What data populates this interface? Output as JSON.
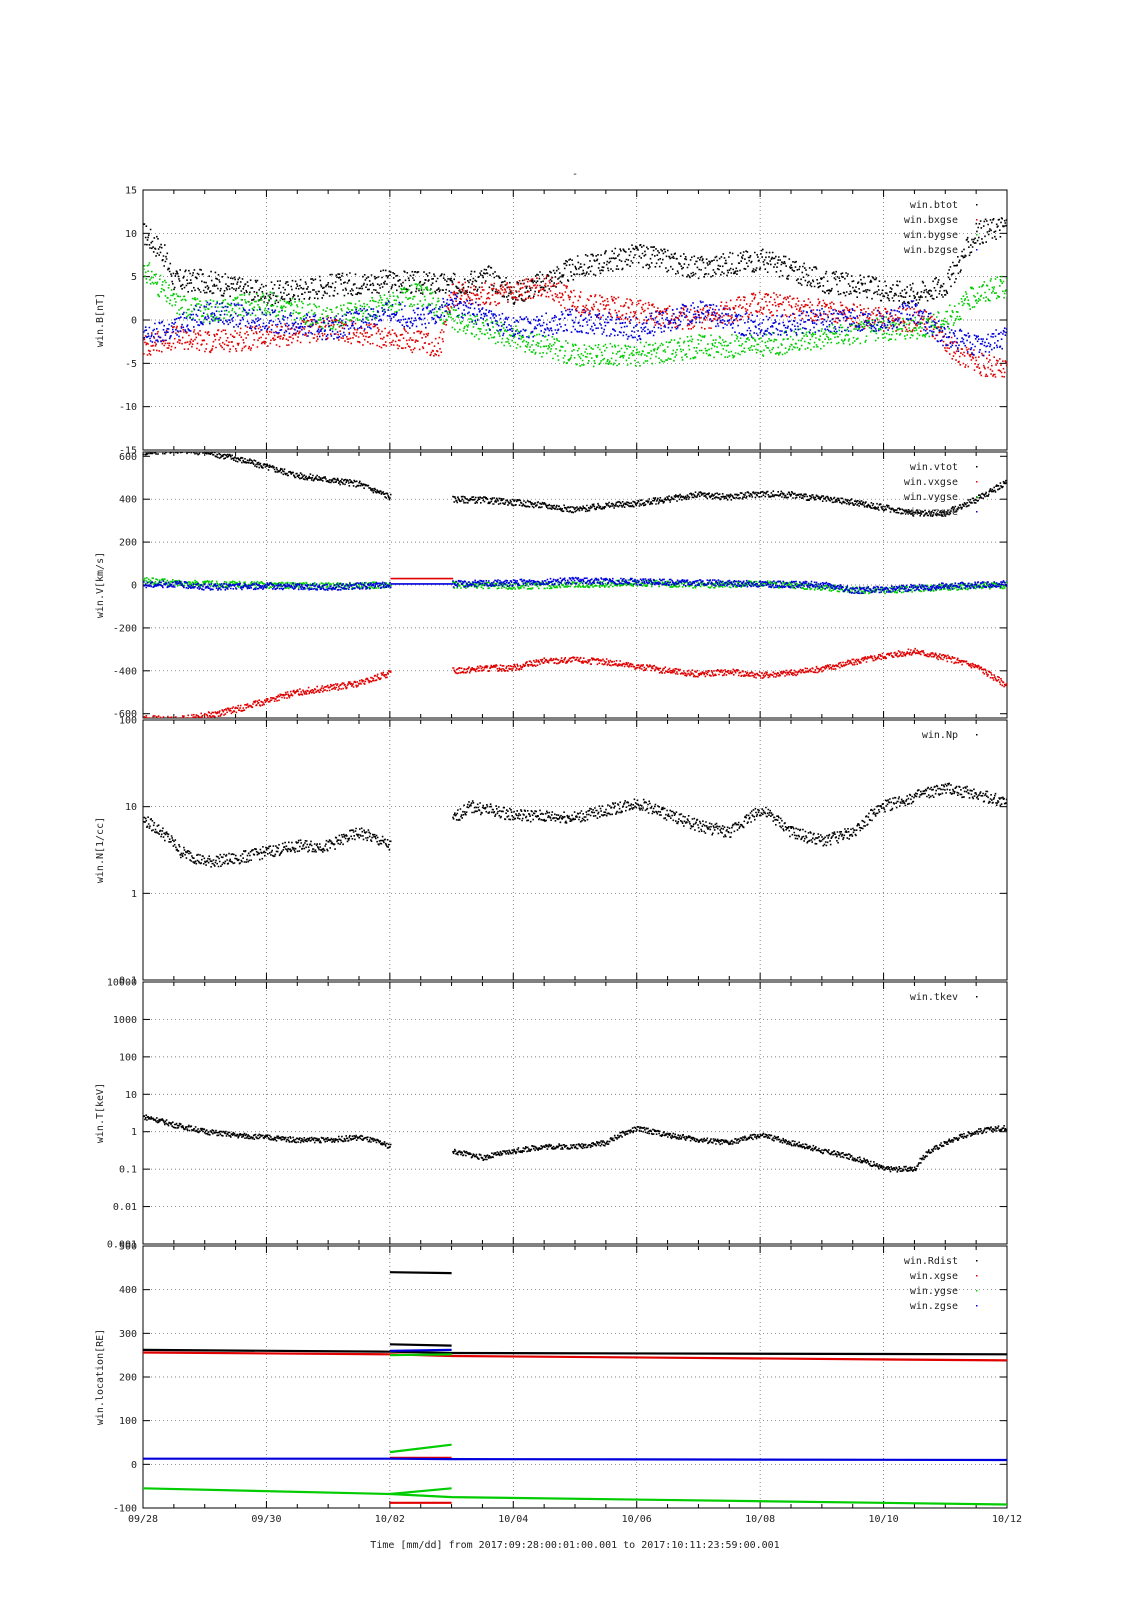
{
  "title": "-",
  "time_axis": {
    "start_day": "09/28",
    "tick_labels": [
      "09/28",
      "09/30",
      "10/02",
      "10/04",
      "10/06",
      "10/08",
      "10/10",
      "10/12"
    ],
    "tick_days": [
      0,
      2,
      4,
      6,
      8,
      10,
      12,
      14
    ],
    "xlim": [
      0,
      14
    ],
    "xlabel": "Time [mm/dd]  from 2017:09:28:00:01:00.001  to  2017:10:11:23:59:00.001"
  },
  "colors": {
    "black": "#000000",
    "red": "#e00000",
    "green": "#00cc00",
    "blue": "#0000dd"
  },
  "chart_data": [
    {
      "type": "scatter",
      "ylabel": "win.B[nT]",
      "scale": "linear",
      "ylim": [
        -15,
        15
      ],
      "yticks": [
        -15,
        -10,
        -5,
        0,
        5,
        10,
        15
      ],
      "ytick_labels": [
        "-15",
        "-10",
        "-5",
        "0",
        "5",
        "10",
        "15"
      ],
      "grid": true,
      "legend_position": "top-right",
      "series": [
        {
          "name": "win.btot",
          "color": "#000000",
          "x": [
            0,
            0.3,
            0.5,
            1,
            2,
            3,
            4,
            5,
            5.6,
            6,
            7,
            8,
            9,
            10,
            11,
            12,
            12.5,
            13,
            13.5,
            14
          ],
          "y": [
            10,
            8,
            4.5,
            4.5,
            3,
            4,
            4.5,
            4,
            5,
            3,
            6,
            7.5,
            6,
            7,
            4.5,
            3.5,
            3,
            4,
            10,
            11
          ]
        },
        {
          "name": "win.bxgse",
          "color": "#e00000",
          "x": [
            0,
            0.5,
            1,
            2,
            3,
            4,
            4.8,
            5,
            6,
            6.5,
            7,
            8,
            9,
            10,
            11,
            12,
            12.7,
            13,
            13.5,
            14
          ],
          "y": [
            -3,
            -2,
            -2.5,
            -2,
            -1,
            -2,
            -3,
            3,
            3,
            4,
            2,
            1,
            0,
            2,
            1,
            0,
            0,
            -3,
            -5,
            -6
          ]
        },
        {
          "name": "win.bygse",
          "color": "#00cc00",
          "x": [
            0,
            0.5,
            1,
            2,
            3,
            4,
            4.5,
            5,
            6,
            7,
            8,
            9,
            10,
            11,
            12,
            12.5,
            13,
            13.5,
            14
          ],
          "y": [
            6,
            2,
            1,
            2,
            0,
            2,
            3,
            0,
            -2,
            -4,
            -4,
            -3,
            -3,
            -2,
            -1,
            -1,
            0,
            3,
            4
          ]
        },
        {
          "name": "win.bzgse",
          "color": "#0000dd",
          "x": [
            0,
            0.5,
            1,
            2,
            3,
            4,
            4.5,
            5,
            6,
            7,
            8,
            9,
            10,
            11,
            12,
            12.5,
            13,
            13.5,
            14
          ],
          "y": [
            -2,
            -1,
            1,
            0,
            -1,
            1,
            0,
            2,
            -1,
            0,
            -1,
            1,
            -1,
            0,
            0,
            1,
            -2,
            -3,
            -2
          ]
        }
      ]
    },
    {
      "type": "scatter",
      "ylabel": "win.V[km/s]",
      "scale": "linear",
      "ylim": [
        -620,
        620
      ],
      "yticks": [
        -600,
        -400,
        -200,
        0,
        200,
        400,
        600
      ],
      "ytick_labels": [
        "-600",
        "-400",
        "-200",
        "0",
        "200",
        "400",
        "600"
      ],
      "grid": true,
      "legend_position": "top-right",
      "series": [
        {
          "name": "win.vtot",
          "color": "#000000",
          "x": [
            0,
            0.5,
            1,
            1.5,
            2,
            2.5,
            3,
            3.5,
            4,
            5,
            5.5,
            6,
            6.5,
            7,
            7.5,
            8,
            8.5,
            9,
            9.5,
            10,
            10.5,
            11,
            11.5,
            12,
            12.5,
            13,
            13.5,
            14
          ],
          "y": [
            620,
            630,
            620,
            590,
            550,
            510,
            490,
            470,
            410,
            400,
            395,
            385,
            370,
            350,
            370,
            380,
            400,
            420,
            410,
            425,
            420,
            400,
            385,
            360,
            335,
            335,
            400,
            480
          ]
        },
        {
          "name": "win.vxgse",
          "color": "#e00000",
          "x": [
            0,
            0.5,
            1,
            1.5,
            2,
            2.5,
            3,
            3.5,
            4,
            5,
            5.5,
            6,
            6.5,
            7,
            7.5,
            8,
            8.5,
            9,
            9.5,
            10,
            10.5,
            11,
            11.5,
            12,
            12.5,
            13,
            13.5,
            14
          ],
          "y": [
            -620,
            -630,
            -610,
            -580,
            -540,
            -500,
            -480,
            -460,
            -410,
            -400,
            -390,
            -385,
            -355,
            -350,
            -360,
            -380,
            -400,
            -415,
            -405,
            -420,
            -410,
            -390,
            -360,
            -330,
            -310,
            -340,
            -380,
            -470
          ]
        },
        {
          "name": "win.vygse",
          "color": "#00cc00",
          "x": [
            0,
            0.5,
            1,
            2,
            3,
            4,
            5,
            6,
            7,
            8,
            9,
            10,
            11,
            11.5,
            12,
            13,
            14
          ],
          "y": [
            20,
            10,
            5,
            0,
            -5,
            0,
            0,
            -5,
            0,
            10,
            0,
            5,
            -10,
            -25,
            -25,
            -10,
            0
          ]
        },
        {
          "name": "win.vzgse",
          "color": "#0000dd",
          "x": [
            0,
            0.5,
            1,
            2,
            3,
            4,
            5,
            6,
            7,
            8,
            9,
            10,
            11,
            11.5,
            12,
            13,
            14
          ],
          "y": [
            0,
            5,
            -10,
            -5,
            -10,
            0,
            5,
            10,
            20,
            15,
            10,
            5,
            0,
            -25,
            -20,
            -5,
            5
          ]
        }
      ]
    },
    {
      "type": "scatter",
      "ylabel": "win.N[1/cc]",
      "scale": "log",
      "ylim": [
        0.1,
        100
      ],
      "yticks": [
        0.1,
        1,
        10,
        100
      ],
      "ytick_labels": [
        "0.1",
        "1",
        "10",
        "100"
      ],
      "grid": true,
      "legend_position": "top-right",
      "series": [
        {
          "name": "win.Np",
          "color": "#000000",
          "x": [
            0,
            0.3,
            0.6,
            1,
            1.5,
            2,
            2.5,
            3,
            3.5,
            4,
            5,
            5.3,
            6,
            7,
            7.5,
            8,
            8.5,
            9,
            9.5,
            10,
            10.5,
            11,
            11.5,
            12,
            12.5,
            13,
            13.5,
            14
          ],
          "y": [
            7,
            5,
            3,
            2.3,
            2.5,
            3,
            3.5,
            3.5,
            5,
            3.5,
            7,
            10,
            8,
            7.5,
            9,
            11,
            8,
            6,
            5,
            9,
            5,
            4,
            5,
            10,
            13,
            16,
            14,
            11
          ]
        }
      ]
    },
    {
      "type": "scatter",
      "ylabel": "win.T[keV]",
      "scale": "log",
      "ylim": [
        0.001,
        10000
      ],
      "yticks": [
        0.001,
        0.01,
        0.1,
        1,
        10,
        100,
        1000,
        10000
      ],
      "ytick_labels": [
        "0.001",
        "0.01",
        "0.1",
        "1",
        "10",
        "100",
        "1000",
        "10000"
      ],
      "grid": true,
      "legend_position": "top-right",
      "series": [
        {
          "name": "win.tkev",
          "color": "#000000",
          "x": [
            0,
            0.5,
            1,
            1.5,
            2,
            2.5,
            3,
            3.5,
            4,
            5,
            5.5,
            6,
            6.5,
            7,
            7.5,
            8,
            8.5,
            9,
            9.5,
            10,
            10.5,
            11,
            11.5,
            12,
            12.5,
            13,
            13.5,
            14
          ],
          "y": [
            2.5,
            1.5,
            1,
            0.8,
            0.7,
            0.6,
            0.6,
            0.7,
            0.4,
            0.3,
            0.2,
            0.3,
            0.4,
            0.4,
            0.5,
            1.2,
            0.8,
            0.6,
            0.5,
            0.8,
            0.5,
            0.3,
            0.2,
            0.1,
            0.1,
            0.5,
            1,
            1.3
          ]
        }
      ]
    },
    {
      "type": "line",
      "ylabel": "win.location[RE]",
      "scale": "linear",
      "ylim": [
        -100,
        500
      ],
      "yticks": [
        -100,
        0,
        100,
        200,
        300,
        400,
        500
      ],
      "ytick_labels": [
        "-100",
        "0",
        "100",
        "200",
        "300",
        "400",
        "500"
      ],
      "grid": true,
      "legend_position": "top-right",
      "series": [
        {
          "name": "win.Rdist",
          "color": "#000000",
          "segments": [
            {
              "x": [
                0,
                4,
                5,
                14
              ],
              "y": [
                262,
                258,
                255,
                252
              ]
            },
            {
              "x": [
                4,
                5
              ],
              "y": [
                440,
                438
              ]
            },
            {
              "x": [
                4,
                5
              ],
              "y": [
                275,
                272
              ]
            }
          ]
        },
        {
          "name": "win.xgse",
          "color": "#e00000",
          "segments": [
            {
              "x": [
                0,
                4,
                5,
                14
              ],
              "y": [
                256,
                252,
                248,
                238
              ]
            },
            {
              "x": [
                4,
                5
              ],
              "y": [
                15,
                15
              ]
            },
            {
              "x": [
                4,
                5
              ],
              "y": [
                -88,
                -88
              ]
            }
          ]
        },
        {
          "name": "win.ygse",
          "color": "#00cc00",
          "segments": [
            {
              "x": [
                0,
                4,
                5,
                14
              ],
              "y": [
                -55,
                -68,
                -75,
                -92
              ]
            },
            {
              "x": [
                4,
                5
              ],
              "y": [
                28,
                45
              ]
            },
            {
              "x": [
                4,
                5
              ],
              "y": [
                250,
                252
              ]
            },
            {
              "x": [
                4,
                5
              ],
              "y": [
                -68,
                -55
              ]
            }
          ]
        },
        {
          "name": "win.zgse",
          "color": "#0000dd",
          "segments": [
            {
              "x": [
                0,
                4,
                5,
                14
              ],
              "y": [
                13,
                13,
                12,
                10
              ]
            },
            {
              "x": [
                4,
                5
              ],
              "y": [
                260,
                262
              ]
            }
          ]
        }
      ]
    }
  ]
}
